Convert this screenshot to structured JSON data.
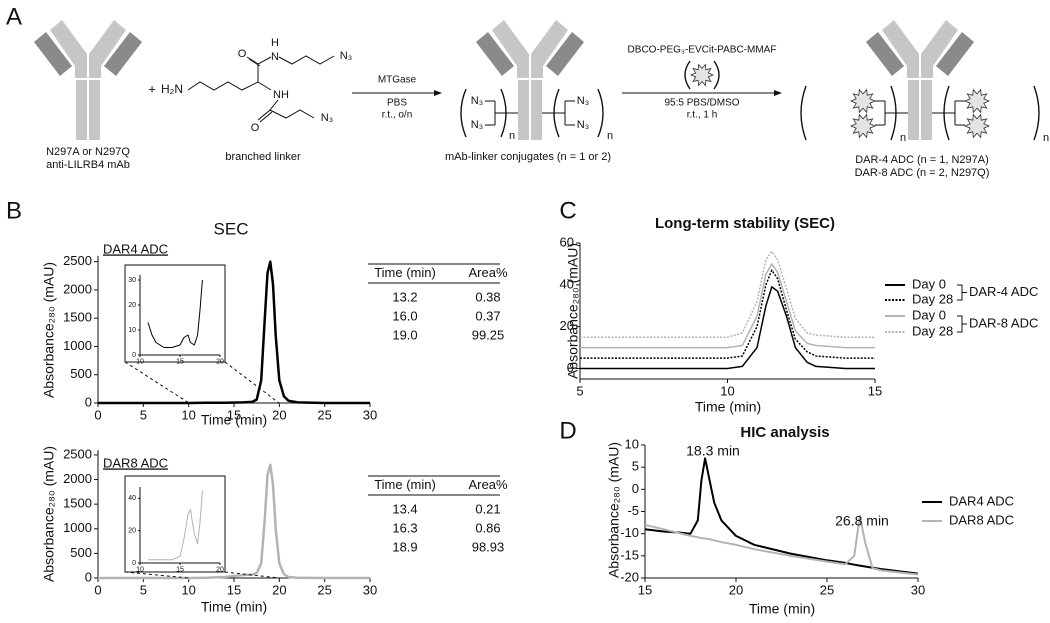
{
  "panels": [
    "A",
    "B",
    "C",
    "D"
  ],
  "scheme": {
    "antibody": {
      "line1": "N297A or N297Q",
      "line2": "anti-LILRB4 mAb"
    },
    "plus": "+",
    "linker": {
      "amine": "H₂N",
      "nh_top_h": "H",
      "nh_top_n": "N",
      "azide_top": "N₃",
      "nh": "NH",
      "azide_bottom": "N₃",
      "oxygen_top": "O",
      "oxygen_bottom": "O",
      "caption": "branched linker"
    },
    "step1": {
      "enzyme": "MTGase",
      "buffer": "PBS",
      "conditions": "r.t., o/n"
    },
    "conjugate": {
      "azides": [
        "N₃",
        "N₃",
        "N₃",
        "N₃"
      ],
      "repeats": [
        "n",
        "n"
      ],
      "caption": "mAb-linker conjugates (n = 1 or 2)"
    },
    "step2": {
      "reagent": "DBCO-PEG₃-EVCit-PABC-MMAF",
      "solvent": "95:5 PBS/DMSO",
      "conditions": "r.t., 1 h"
    },
    "product": {
      "repeats": [
        "n",
        "n"
      ],
      "captions": [
        "DAR-4 ADC (n = 1, N297A)",
        "DAR-8 ADC (n = 2, N297Q)"
      ]
    }
  },
  "tables": [
    {
      "columns": [
        "Time (min)",
        "Area%"
      ],
      "rows": [
        [
          "13.2",
          "0.38"
        ],
        [
          "16.0",
          "0.37"
        ],
        [
          "19.0",
          "99.25"
        ]
      ]
    },
    {
      "columns": [
        "Time (min)",
        "Area%"
      ],
      "rows": [
        [
          "13.4",
          "0.21"
        ],
        [
          "16.3",
          "0.86"
        ],
        [
          "18.9",
          "98.93"
        ]
      ]
    }
  ],
  "chart_data": [
    {
      "type": "line",
      "title": "SEC",
      "label": "DAR4 ADC",
      "xlabel": "Time (min)",
      "ylabel": "Absorbance₂₈₀ (mAU)",
      "x": [
        0,
        10,
        12,
        14,
        16,
        17,
        17.5,
        18,
        18.4,
        18.7,
        19,
        19.3,
        19.6,
        20,
        20.5,
        21,
        22,
        25,
        30
      ],
      "values": [
        0,
        0,
        5,
        5,
        10,
        20,
        60,
        400,
        1500,
        2300,
        2500,
        2100,
        1200,
        400,
        120,
        40,
        10,
        0,
        0
      ],
      "color": "#000000",
      "xlim": [
        0,
        30
      ],
      "ylim": [
        0,
        2600
      ],
      "xticks": [
        0,
        5,
        10,
        15,
        20,
        25,
        30
      ],
      "yticks": [
        0,
        500,
        1000,
        1500,
        2000,
        2500
      ]
    },
    {
      "type": "line",
      "x": [
        11,
        11.5,
        12,
        13,
        14,
        15,
        15.5,
        16,
        16.3,
        16.8,
        17.2,
        17.5,
        17.8
      ],
      "values": [
        13,
        8,
        5,
        3,
        3,
        4,
        7,
        8,
        5,
        4,
        8,
        18,
        30
      ],
      "color": "#000000",
      "xlim": [
        10,
        20
      ],
      "ylim": [
        0,
        32
      ],
      "xticks": [
        10,
        15,
        20
      ],
      "yticks": [
        0,
        10,
        20,
        30
      ]
    },
    {
      "type": "line",
      "label": "DAR8 ADC",
      "xlabel": "Time (min)",
      "ylabel": "Absorbance₂₈₀ (mAU)",
      "x": [
        0,
        10,
        12,
        14,
        16,
        17,
        17.5,
        18,
        18.4,
        18.7,
        19,
        19.3,
        19.6,
        20,
        20.5,
        21,
        22,
        25,
        30
      ],
      "values": [
        0,
        0,
        5,
        20,
        60,
        70,
        100,
        300,
        1200,
        2100,
        2300,
        1900,
        1000,
        300,
        80,
        20,
        5,
        0,
        0
      ],
      "color": "#b3b3b3",
      "xlim": [
        0,
        30
      ],
      "ylim": [
        0,
        2600
      ],
      "xticks": [
        0,
        5,
        10,
        15,
        20,
        25,
        30
      ],
      "yticks": [
        0,
        500,
        1000,
        1500,
        2000,
        2500
      ]
    },
    {
      "type": "line",
      "x": [
        11,
        12,
        13,
        14,
        15,
        15.5,
        16,
        16.3,
        16.8,
        17.2,
        17.5,
        17.8
      ],
      "values": [
        2,
        2,
        2,
        2,
        4,
        15,
        30,
        33,
        18,
        12,
        25,
        45
      ],
      "color": "#b3b3b3",
      "xlim": [
        10,
        20
      ],
      "ylim": [
        0,
        47
      ],
      "xticks": [
        10,
        15,
        20
      ],
      "yticks": [
        0,
        20,
        40
      ]
    },
    {
      "type": "line",
      "title": "Long-term stability (SEC)",
      "xlabel": "Time (min)",
      "ylabel": "Absorbance₂₈₀ (mAU)",
      "x": [
        5,
        9,
        10,
        10.5,
        11,
        11.3,
        11.5,
        11.7,
        12,
        12.3,
        12.7,
        13,
        14,
        15
      ],
      "series": [
        {
          "name": "Day 0",
          "color": "#000000",
          "dash": false,
          "values": [
            0,
            0,
            0,
            1,
            10,
            30,
            39,
            37,
            25,
            10,
            3,
            1,
            0,
            0
          ]
        },
        {
          "name": "Day 28",
          "color": "#000000",
          "dash": true,
          "values": [
            5,
            5,
            5,
            6,
            20,
            40,
            47,
            43,
            28,
            14,
            8,
            6,
            5,
            5
          ]
        },
        {
          "name": "Day 0",
          "color": "#b3b3b3",
          "dash": false,
          "values": [
            10,
            10,
            10,
            11,
            25,
            45,
            50,
            46,
            32,
            18,
            12,
            11,
            10,
            10
          ]
        },
        {
          "name": "Day 28",
          "color": "#b3b3b3",
          "dash": true,
          "values": [
            15,
            15,
            15,
            17,
            32,
            52,
            56,
            52,
            38,
            24,
            17,
            16,
            15,
            15
          ]
        }
      ],
      "legend_groups": [
        "DAR-4 ADC",
        "DAR-8 ADC"
      ],
      "xlim": [
        5,
        15
      ],
      "ylim": [
        -5,
        60
      ],
      "xticks": [
        5,
        10,
        15
      ],
      "yticks": [
        0,
        20,
        40,
        60
      ]
    },
    {
      "type": "line",
      "title": "HIC analysis",
      "xlabel": "Time (min)",
      "ylabel": "Absorbance₂₈₀ (mAU)",
      "x": [
        15,
        16,
        17,
        17.5,
        17.9,
        18.1,
        18.3,
        18.5,
        18.8,
        19.2,
        20,
        21,
        23,
        25,
        26,
        26.5,
        26.8,
        27.1,
        27.5,
        28,
        30
      ],
      "series": [
        {
          "name": "DAR4 ADC",
          "color": "#000000",
          "values": [
            -9,
            -9.5,
            -9.8,
            -10,
            -7,
            2,
            7,
            3,
            -3,
            -7,
            -10.5,
            -12.5,
            -14.5,
            -16,
            -16.6,
            -17,
            -17.2,
            -17.4,
            -17.7,
            -18,
            -19
          ]
        },
        {
          "name": "DAR8 ADC",
          "color": "#b3b3b3",
          "values": [
            -8,
            -9,
            -10,
            -10.5,
            -10.8,
            -11,
            -11.1,
            -11.2,
            -11.5,
            -11.9,
            -12.5,
            -13.5,
            -15,
            -16.3,
            -16.9,
            -15,
            -6,
            -12,
            -17.8,
            -18.3,
            -19.2
          ]
        }
      ],
      "annotations": [
        "18.3 min",
        "26.8 min"
      ],
      "xlim": [
        15,
        30
      ],
      "ylim": [
        -20,
        10
      ],
      "xticks": [
        15,
        20,
        25,
        30
      ],
      "yticks": [
        -20,
        -15,
        -10,
        -5,
        0,
        5,
        10
      ]
    }
  ]
}
